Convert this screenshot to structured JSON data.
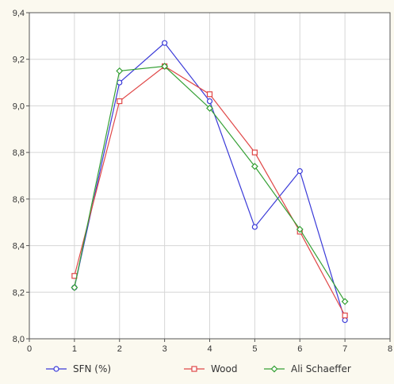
{
  "chart_data": {
    "type": "line",
    "title": "",
    "xlabel": "",
    "ylabel": "",
    "xlim": [
      0,
      8
    ],
    "ylim": [
      8.0,
      9.4
    ],
    "x_ticks": [
      0,
      1,
      2,
      3,
      4,
      5,
      6,
      7,
      8
    ],
    "x_tick_labels": [
      "0",
      "1",
      "2",
      "3",
      "4",
      "5",
      "6",
      "7",
      "8"
    ],
    "y_ticks": [
      8.0,
      8.2,
      8.4,
      8.6,
      8.8,
      9.0,
      9.2,
      9.4
    ],
    "y_tick_labels": [
      "8,0",
      "8,2",
      "8,4",
      "8,6",
      "8,8",
      "9,0",
      "9,2",
      "9,4"
    ],
    "grid": true,
    "legend_position": "bottom",
    "x": [
      1,
      2,
      3,
      4,
      5,
      6,
      7
    ],
    "series": [
      {
        "name": "SFN (%)",
        "color": "#3a3ad8",
        "marker": "circle",
        "values": [
          8.22,
          9.1,
          9.27,
          9.02,
          8.48,
          8.72,
          8.08
        ]
      },
      {
        "name": "Wood",
        "color": "#e04848",
        "marker": "square",
        "values": [
          8.27,
          9.02,
          9.17,
          9.05,
          8.8,
          8.46,
          8.1
        ]
      },
      {
        "name": "Ali Schaeffer",
        "color": "#35a035",
        "marker": "diamond",
        "values": [
          8.22,
          9.15,
          9.17,
          8.99,
          8.74,
          8.47,
          8.16
        ]
      }
    ]
  }
}
